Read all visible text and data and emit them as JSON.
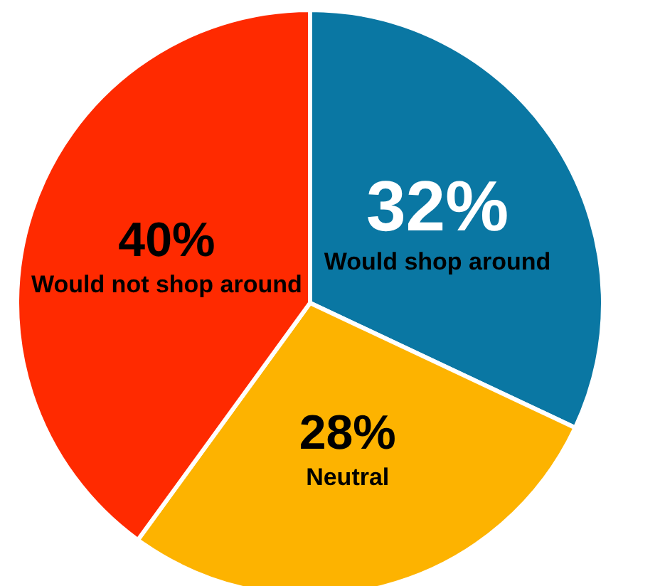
{
  "chart_data": {
    "type": "pie",
    "categories": [
      "Would shop around",
      "Neutral",
      "Would not shop around"
    ],
    "values": [
      32,
      28,
      40
    ],
    "value_labels": [
      "32%",
      "28%",
      "40%"
    ],
    "colors": [
      "#0a77a3",
      "#fdb300",
      "#ff2a00"
    ],
    "legend": false
  }
}
